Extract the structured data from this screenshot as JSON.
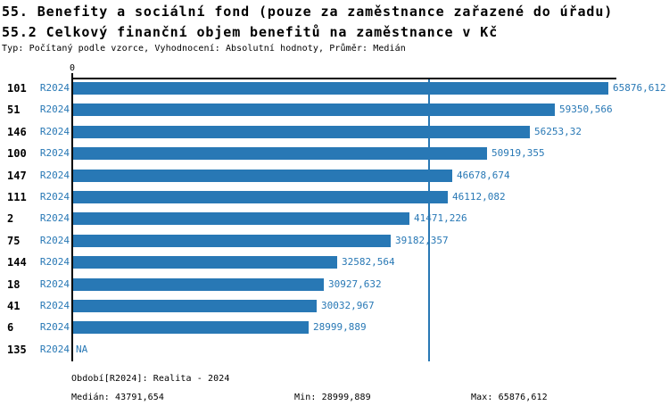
{
  "header": {
    "title_line1": "55. Benefity a sociální fond (pouze za zaměstnance zařazené do úřadu)",
    "title_line2": "55.2 Celkový finanční objem benefitů na zaměstnance v Kč",
    "meta": "Typ: Počítaný podle vzorce, Vyhodnocení: Absolutní hodnoty, Průměr: Medián"
  },
  "chart_data": {
    "type": "bar",
    "orientation": "horizontal",
    "title": "55.2 Celkový finanční objem benefitů na zaměstnance v Kč",
    "series_label": "R2024",
    "categories": [
      "101",
      "51",
      "146",
      "100",
      "147",
      "111",
      "2",
      "75",
      "144",
      "18",
      "41",
      "6",
      "135"
    ],
    "values": [
      65876.612,
      59350.566,
      56253.32,
      50919.355,
      46678.674,
      46112.082,
      41471.226,
      39182.357,
      32582.564,
      30927.632,
      30032.967,
      28999.889,
      null
    ],
    "value_labels": [
      "65876,612",
      "59350,566",
      "56253,32",
      "50919,355",
      "46678,674",
      "46112,082",
      "41471,226",
      "39182,357",
      "32582,564",
      "30927,632",
      "30032,967",
      "28999,889",
      "NA"
    ],
    "axis_zero_label": "0",
    "xlim": [
      0,
      65876.612
    ],
    "median": 43791.654,
    "min": 28999.889,
    "max": 65876.612,
    "grid": false,
    "legend": "none",
    "bar_color": "#2878B5",
    "median_line_color": "#2878B5"
  },
  "footer": {
    "period": "Období[R2024]: Realita - 2024",
    "median": "Medián: 43791,654",
    "min": "Min: 28999,889",
    "max": "Max: 65876,612"
  },
  "colors": {
    "accent": "#2878B5",
    "axis": "#000000"
  }
}
